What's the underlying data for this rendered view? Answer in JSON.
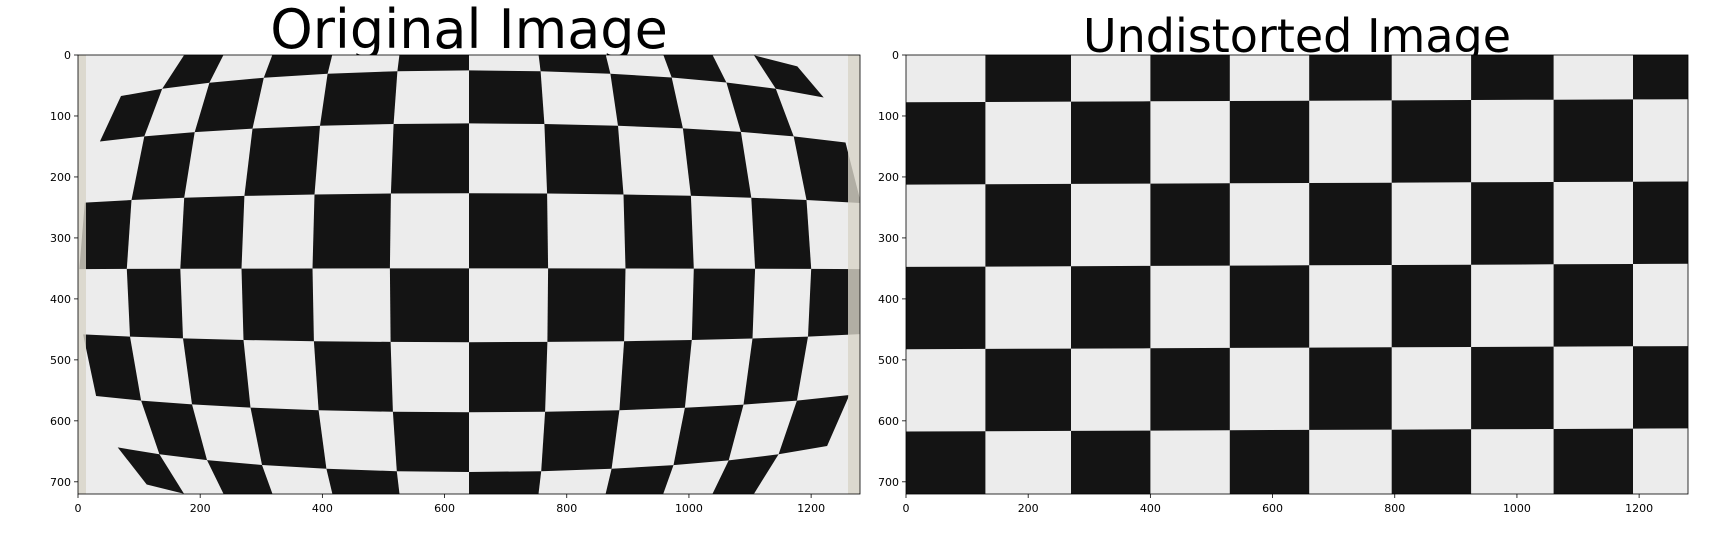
{
  "panels": [
    {
      "title": "Original Image",
      "x_ticks": [
        "0",
        "200",
        "400",
        "600",
        "800",
        "1000",
        "1200"
      ],
      "y_ticks": [
        "0",
        "100",
        "200",
        "300",
        "400",
        "500",
        "600",
        "700"
      ],
      "image": "checkerboard-photo-with-barrel-distortion"
    },
    {
      "title": "Undistorted Image",
      "x_ticks": [
        "0",
        "200",
        "400",
        "600",
        "800",
        "1000",
        "1200"
      ],
      "y_ticks": [
        "0",
        "100",
        "200",
        "300",
        "400",
        "500",
        "600",
        "700"
      ],
      "image": "checkerboard-photo-corrected"
    }
  ],
  "colors": {
    "dark": "#141414",
    "light": "#ececec",
    "edge": "#d8d4c8"
  }
}
